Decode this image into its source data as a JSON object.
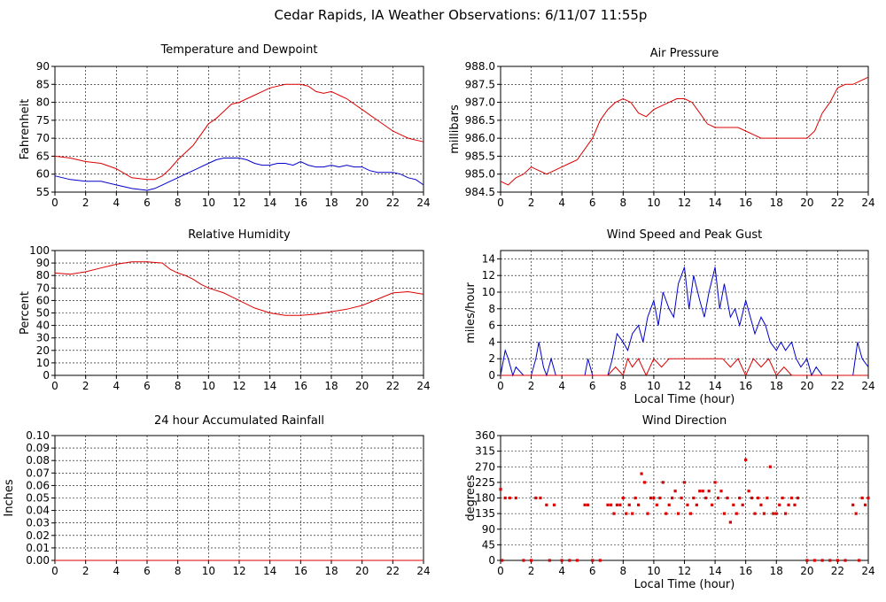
{
  "page": {
    "title": "Cedar Rapids, IA Weather Observations: 6/11/07 11:55p"
  },
  "chart_data": [
    {
      "id": "temp",
      "type": "line",
      "title": "Temperature and Dewpoint",
      "xlabel": "",
      "ylabel": "Fahrenheit",
      "xlim": [
        0,
        24
      ],
      "ylim": [
        55,
        90
      ],
      "xticks": [
        0,
        2,
        4,
        6,
        8,
        10,
        12,
        14,
        16,
        18,
        20,
        22,
        24
      ],
      "yticks": [
        55,
        60,
        65,
        70,
        75,
        80,
        85,
        90
      ],
      "grid": true,
      "series": [
        {
          "color": "#dd0000",
          "x": [
            0,
            1,
            2,
            3,
            4,
            5,
            6,
            6.5,
            7,
            7.5,
            8,
            8.5,
            9,
            9.5,
            10,
            10.5,
            11,
            11.5,
            12,
            12.5,
            13,
            13.5,
            14,
            14.5,
            15,
            15.5,
            16,
            16.5,
            17,
            17.5,
            18,
            18.5,
            19,
            19.5,
            20,
            20.5,
            21,
            21.5,
            22,
            22.5,
            23,
            23.5,
            24
          ],
          "y": [
            65,
            64.5,
            63.5,
            63,
            61.5,
            59,
            58.5,
            58.5,
            59.5,
            61.5,
            64,
            66,
            68,
            71,
            74,
            75.5,
            77.5,
            79.5,
            80,
            81,
            82,
            83,
            84,
            84.5,
            85,
            85,
            85,
            84.5,
            83,
            82.5,
            83,
            82,
            81,
            79.5,
            78,
            76.5,
            75,
            73.5,
            72,
            71,
            70,
            69.5,
            69
          ]
        },
        {
          "color": "#0000cc",
          "x": [
            0,
            1,
            2,
            3,
            4,
            5,
            6,
            6.5,
            7,
            7.5,
            8,
            8.5,
            9,
            9.5,
            10,
            10.5,
            11,
            11.5,
            12,
            12.5,
            13,
            13.5,
            14,
            14.5,
            15,
            15.5,
            16,
            16.5,
            17,
            17.5,
            18,
            18.5,
            19,
            19.5,
            20,
            20.5,
            21,
            21.5,
            22,
            22.5,
            23,
            23.5,
            24
          ],
          "y": [
            59.5,
            58.5,
            58,
            58,
            57,
            56,
            55.5,
            56,
            57,
            58,
            59,
            60,
            61,
            62,
            63,
            64,
            64.5,
            64.5,
            64.5,
            64,
            63,
            62.5,
            62.5,
            63,
            63,
            62.5,
            63.5,
            62.5,
            62,
            62,
            62.5,
            62,
            62.5,
            62,
            62,
            61,
            60.5,
            60.5,
            60.5,
            60,
            59,
            58.5,
            57
          ]
        }
      ]
    },
    {
      "id": "pressure",
      "type": "line",
      "title": "Air Pressure",
      "xlabel": "",
      "ylabel": "millibars",
      "xlim": [
        0,
        24
      ],
      "ylim": [
        984.5,
        988.0
      ],
      "xticks": [
        0,
        2,
        4,
        6,
        8,
        10,
        12,
        14,
        16,
        18,
        20,
        22,
        24
      ],
      "yticks": [
        984.5,
        985.0,
        985.5,
        986.0,
        986.5,
        987.0,
        987.5,
        988.0
      ],
      "ytick_labels": [
        "984.5",
        "985.0",
        "985.5",
        "986.0",
        "986.5",
        "987.0",
        "987.5",
        "988.0"
      ],
      "grid": true,
      "series": [
        {
          "color": "#dd0000",
          "x": [
            0,
            0.5,
            1,
            1.5,
            2,
            2.5,
            3,
            3.5,
            4,
            4.5,
            5,
            5.5,
            6,
            6.5,
            7,
            7.5,
            8,
            8.5,
            9,
            9.5,
            10,
            10.5,
            11,
            11.5,
            12,
            12.5,
            13,
            13.5,
            14,
            14.5,
            15,
            15.5,
            16,
            16.5,
            17,
            17.5,
            18,
            18.5,
            19,
            19.5,
            20,
            20.5,
            21,
            21.5,
            22,
            22.5,
            23,
            23.5,
            24
          ],
          "y": [
            984.8,
            984.7,
            984.9,
            985.0,
            985.2,
            985.1,
            985.0,
            985.1,
            985.2,
            985.3,
            985.4,
            985.7,
            986.0,
            986.5,
            986.8,
            987.0,
            987.1,
            987.0,
            986.7,
            986.6,
            986.8,
            986.9,
            987.0,
            987.1,
            987.1,
            987.0,
            986.7,
            986.4,
            986.3,
            986.3,
            986.3,
            986.3,
            986.2,
            986.1,
            986.0,
            986.0,
            986.0,
            986.0,
            986.0,
            986.0,
            986.0,
            986.2,
            986.7,
            987.0,
            987.4,
            987.5,
            987.5,
            987.6,
            987.7
          ]
        }
      ]
    },
    {
      "id": "humidity",
      "type": "line",
      "title": "Relative Humidity",
      "xlabel": "",
      "ylabel": "Percent",
      "xlim": [
        0,
        24
      ],
      "ylim": [
        0,
        100
      ],
      "xticks": [
        0,
        2,
        4,
        6,
        8,
        10,
        12,
        14,
        16,
        18,
        20,
        22,
        24
      ],
      "yticks": [
        0,
        10,
        20,
        30,
        40,
        50,
        60,
        70,
        80,
        90,
        100
      ],
      "grid": true,
      "series": [
        {
          "color": "#dd0000",
          "x": [
            0,
            1,
            2,
            3,
            4,
            5,
            6,
            7,
            7.5,
            8,
            8.5,
            9,
            9.5,
            10,
            11,
            12,
            13,
            14,
            15,
            16,
            17,
            18,
            19,
            20,
            21,
            22,
            23,
            24
          ],
          "y": [
            82,
            81,
            83,
            86,
            89,
            91,
            91,
            90,
            85,
            82,
            80,
            77,
            73,
            70,
            66,
            60,
            54,
            50,
            48,
            48,
            49,
            51,
            53,
            56,
            61,
            66,
            67,
            65
          ]
        }
      ]
    },
    {
      "id": "wind",
      "type": "line",
      "title": "Wind Speed and Peak Gust",
      "xlabel": "Local Time (hour)",
      "ylabel": "miles/hour",
      "xlim": [
        0,
        24
      ],
      "ylim": [
        0,
        15
      ],
      "xticks": [
        0,
        2,
        4,
        6,
        8,
        10,
        12,
        14,
        16,
        18,
        20,
        22,
        24
      ],
      "yticks": [
        0,
        2,
        4,
        6,
        8,
        10,
        12,
        14
      ],
      "grid": true,
      "series": [
        {
          "color": "#0000cc",
          "x": [
            0,
            0.3,
            0.5,
            0.8,
            1,
            1.5,
            2,
            2.3,
            2.5,
            2.8,
            3,
            3.3,
            3.6,
            4,
            5,
            5.5,
            5.7,
            6,
            7,
            7.3,
            7.6,
            8,
            8.3,
            8.6,
            9,
            9.3,
            9.6,
            10,
            10.3,
            10.6,
            11,
            11.3,
            11.6,
            12,
            12.3,
            12.6,
            13,
            13.3,
            13.6,
            14,
            14.3,
            14.6,
            15,
            15.3,
            15.6,
            16,
            16.3,
            16.6,
            17,
            17.3,
            17.6,
            18,
            18.3,
            18.6,
            19,
            19.3,
            19.6,
            20,
            20.3,
            20.6,
            21,
            22,
            23,
            23.3,
            23.6,
            24
          ],
          "y": [
            0,
            3,
            2,
            0,
            1,
            0,
            0,
            2,
            4,
            1,
            0,
            2,
            0,
            0,
            0,
            0,
            2,
            0,
            0,
            2,
            5,
            4,
            3,
            5,
            6,
            4,
            7,
            9,
            6,
            10,
            8,
            7,
            11,
            13,
            8,
            12,
            9,
            7,
            10,
            13,
            8,
            11,
            7,
            8,
            6,
            9,
            7,
            5,
            7,
            6,
            4,
            3,
            4,
            3,
            4,
            2,
            1,
            2,
            0,
            1,
            0,
            0,
            0,
            4,
            2,
            1
          ]
        },
        {
          "color": "#dd0000",
          "x": [
            0,
            6,
            7,
            7.5,
            8,
            8.3,
            8.6,
            9,
            9.5,
            10,
            10.5,
            11,
            11.5,
            12,
            12.5,
            13,
            13.5,
            14,
            14.5,
            15,
            15.5,
            16,
            16.5,
            17,
            17.5,
            18,
            18.5,
            19,
            19.5,
            20,
            24
          ],
          "y": [
            0,
            0,
            0,
            1,
            0,
            2,
            1,
            2,
            0,
            2,
            1,
            2,
            2,
            2,
            2,
            2,
            2,
            2,
            2,
            1,
            2,
            0,
            2,
            1,
            2,
            0,
            1,
            0,
            0,
            0,
            0
          ]
        }
      ]
    },
    {
      "id": "rain",
      "type": "line",
      "title": "24 hour Accumulated Rainfall",
      "xlabel": "",
      "ylabel": "Inches",
      "xlim": [
        0,
        24
      ],
      "ylim": [
        0,
        0.1
      ],
      "xticks": [
        0,
        2,
        4,
        6,
        8,
        10,
        12,
        14,
        16,
        18,
        20,
        22,
        24
      ],
      "yticks": [
        0,
        0.01,
        0.02,
        0.03,
        0.04,
        0.05,
        0.06,
        0.07,
        0.08,
        0.09,
        0.1
      ],
      "ytick_labels": [
        "0.00",
        "0.01",
        "0.02",
        "0.03",
        "0.04",
        "0.05",
        "0.06",
        "0.07",
        "0.08",
        "0.09",
        "0.10"
      ],
      "grid": true,
      "series": [
        {
          "color": "#dd0000",
          "x": [
            0,
            24
          ],
          "y": [
            0,
            0
          ]
        }
      ]
    },
    {
      "id": "direction",
      "type": "scatter",
      "title": "Wind Direction",
      "xlabel": "Local Time (hour)",
      "ylabel": "degrees",
      "xlim": [
        0,
        24
      ],
      "ylim": [
        0,
        360
      ],
      "xticks": [
        0,
        2,
        4,
        6,
        8,
        10,
        12,
        14,
        16,
        18,
        20,
        22,
        24
      ],
      "yticks": [
        0,
        45,
        90,
        135,
        180,
        225,
        270,
        315,
        360
      ],
      "grid": true,
      "series": [
        {
          "color": "#dd0000",
          "x": [
            0,
            0.1,
            0.3,
            0.6,
            1,
            1.5,
            2,
            2.3,
            2.6,
            3,
            3.2,
            3.5,
            4,
            4.5,
            5,
            5.5,
            5.7,
            6,
            6.5,
            7,
            7.2,
            7.4,
            7.6,
            7.8,
            8,
            8.2,
            8.4,
            8.6,
            8.8,
            9,
            9.2,
            9.4,
            9.6,
            9.8,
            10,
            10.2,
            10.4,
            10.6,
            10.8,
            11,
            11.2,
            11.4,
            11.6,
            11.8,
            12,
            12.2,
            12.4,
            12.6,
            12.8,
            13,
            13.2,
            13.4,
            13.6,
            13.8,
            14,
            14.2,
            14.4,
            14.6,
            14.8,
            15,
            15.2,
            15.4,
            15.6,
            15.8,
            16,
            16.2,
            16.4,
            16.6,
            16.8,
            17,
            17.2,
            17.4,
            17.6,
            17.8,
            18,
            18.2,
            18.4,
            18.6,
            18.8,
            19,
            19.2,
            19.4,
            20,
            20.5,
            21,
            21.5,
            22,
            22.5,
            23,
            23.2,
            23.4,
            23.6,
            23.8,
            24
          ],
          "y": [
            205,
            0,
            180,
            180,
            180,
            0,
            0,
            180,
            180,
            160,
            0,
            160,
            0,
            0,
            0,
            160,
            160,
            0,
            0,
            160,
            160,
            135,
            160,
            160,
            180,
            135,
            160,
            135,
            180,
            160,
            250,
            225,
            135,
            180,
            180,
            160,
            180,
            225,
            135,
            160,
            180,
            200,
            135,
            180,
            225,
            160,
            135,
            180,
            160,
            200,
            200,
            180,
            200,
            160,
            225,
            180,
            200,
            135,
            180,
            110,
            160,
            135,
            180,
            160,
            290,
            200,
            180,
            135,
            180,
            160,
            135,
            180,
            270,
            135,
            135,
            160,
            180,
            135,
            160,
            180,
            160,
            180,
            0,
            0,
            0,
            0,
            0,
            0,
            160,
            135,
            0,
            180,
            160,
            180
          ]
        }
      ]
    }
  ]
}
